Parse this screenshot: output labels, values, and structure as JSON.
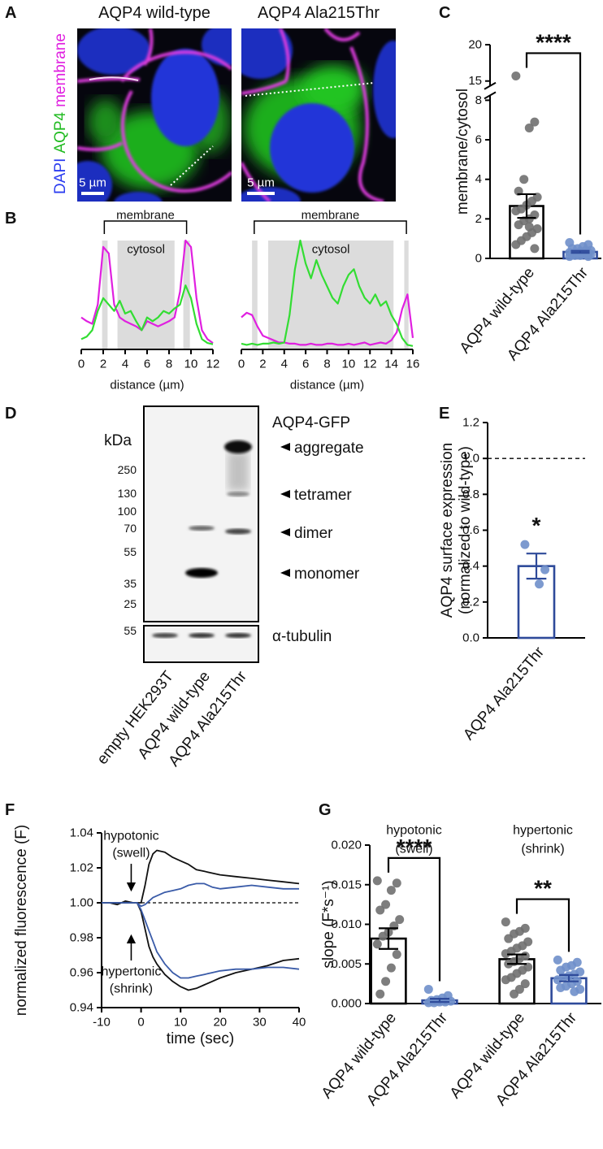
{
  "figure": {
    "panel_labels": [
      "A",
      "B",
      "C",
      "D",
      "E",
      "F",
      "G"
    ]
  },
  "microscopy": {
    "images": [
      {
        "title": "AQP4 wild-type",
        "scale_bar": "5 µm"
      },
      {
        "title": "AQP4 Ala215Thr",
        "scale_bar": "5 µm"
      }
    ],
    "channels": [
      {
        "name": "DAPI",
        "color": "#2b3cf0"
      },
      {
        "name": "AQP4",
        "color": "#22bb22"
      },
      {
        "name": "membrane",
        "color": "#e020e0"
      }
    ]
  },
  "western_blot": {
    "title": "AQP4-GFP",
    "unit": "kDa",
    "markers": [
      250,
      130,
      100,
      70,
      55,
      35,
      25
    ],
    "bands": [
      "aggregate",
      "tetramer",
      "dimer",
      "monomer"
    ],
    "loading_control": "α-tubulin",
    "loading_marker": 55,
    "lanes": [
      "empty HEK293T",
      "AQP4 wild-type",
      "AQP4 Ala215Thr"
    ]
  },
  "chart_data": [
    {
      "type": "line",
      "xlabel": "distance (µm)",
      "xlim": [
        0,
        12
      ],
      "xticks": [
        0,
        2,
        4,
        6,
        8,
        10,
        12
      ],
      "x": [
        0,
        0.5,
        1,
        1.5,
        2,
        2.5,
        3,
        3.5,
        4,
        4.5,
        5,
        5.5,
        6,
        6.5,
        7,
        7.5,
        8,
        8.5,
        9,
        9.5,
        10,
        10.5,
        11,
        11.5,
        12
      ],
      "series": [
        {
          "color": "#e020e0",
          "values": [
            25,
            22,
            20,
            35,
            80,
            75,
            35,
            25,
            22,
            20,
            18,
            15,
            22,
            20,
            18,
            20,
            22,
            25,
            45,
            85,
            80,
            40,
            15,
            8,
            5
          ]
        },
        {
          "color": "#33dd33",
          "values": [
            8,
            10,
            15,
            30,
            40,
            35,
            30,
            38,
            28,
            30,
            22,
            15,
            25,
            22,
            25,
            30,
            28,
            32,
            35,
            50,
            40,
            20,
            8,
            5,
            4
          ]
        }
      ],
      "shaded": [
        [
          1.9,
          2.4
        ],
        [
          3.3,
          8.5
        ],
        [
          9.3,
          9.9
        ]
      ],
      "brackets": [
        {
          "text": "membrane",
          "span": [
            2.1,
            9.6
          ]
        }
      ],
      "region_labels": [
        {
          "text": "cytosol",
          "span": [
            3.3,
            8.5
          ]
        }
      ]
    },
    {
      "type": "line",
      "xlabel": "distance (µm)",
      "xlim": [
        0,
        16
      ],
      "xticks": [
        0,
        2,
        4,
        6,
        8,
        10,
        12,
        14,
        16
      ],
      "x": [
        0,
        0.5,
        1,
        1.5,
        2,
        2.5,
        3,
        3.5,
        4,
        4.5,
        5,
        5.5,
        6,
        6.5,
        7,
        7.5,
        8,
        8.5,
        9,
        9.5,
        10,
        10.5,
        11,
        11.5,
        12,
        12.5,
        13,
        13.5,
        14,
        14.5,
        15,
        15.5,
        16
      ],
      "series": [
        {
          "color": "#e020e0",
          "values": [
            28,
            32,
            30,
            20,
            12,
            10,
            8,
            6,
            6,
            5,
            5,
            4,
            4,
            5,
            4,
            4,
            5,
            5,
            4,
            4,
            5,
            4,
            5,
            6,
            4,
            5,
            6,
            5,
            8,
            15,
            35,
            48,
            10
          ]
        },
        {
          "color": "#33dd33",
          "values": [
            5,
            4,
            5,
            4,
            5,
            5,
            6,
            5,
            6,
            30,
            70,
            95,
            75,
            62,
            78,
            65,
            55,
            45,
            40,
            55,
            65,
            70,
            55,
            45,
            40,
            48,
            38,
            42,
            30,
            22,
            10,
            4,
            3
          ]
        }
      ],
      "shaded": [
        [
          1,
          1.5
        ],
        [
          2.5,
          14.2
        ],
        [
          15.2,
          15.6
        ]
      ],
      "brackets": [
        {
          "text": "membrane",
          "span": [
            1.2,
            15.4
          ]
        }
      ],
      "region_labels": [
        {
          "text": "cytosol",
          "span": [
            2.5,
            14.2
          ]
        }
      ]
    },
    {
      "type": "bar",
      "ylabel": "membrane/cytosol",
      "categories": [
        "AQP4 wild-type",
        "AQP4 Ala215Thr"
      ],
      "values": [
        2.65,
        0.33
      ],
      "errors": [
        0.6,
        0.05
      ],
      "colors": [
        "#000000",
        "#2e4a9a"
      ],
      "point_colors": [
        "#707070",
        "#6f8fca"
      ],
      "points": [
        [
          15.7,
          6.9,
          6.6,
          4.0,
          3.4,
          3.1,
          2.9,
          2.7,
          2.5,
          2.4,
          2.2,
          2.0,
          1.9,
          1.7,
          1.5,
          1.3,
          1.1,
          0.9,
          0.7,
          0.5,
          1.6
        ],
        [
          0.8,
          0.7,
          0.6,
          0.5,
          0.5,
          0.4,
          0.4,
          0.35,
          0.3,
          0.3,
          0.3,
          0.25,
          0.25,
          0.2,
          0.2,
          0.2,
          0.15,
          0.15,
          0.1,
          0.1
        ]
      ],
      "ylim": [
        0,
        20
      ],
      "ybreak": [
        8,
        15
      ],
      "yticks": [
        0,
        2,
        4,
        6,
        8,
        15,
        20
      ],
      "significance": [
        {
          "label": "****",
          "between": [
            0,
            1
          ]
        }
      ]
    },
    {
      "type": "bar",
      "ylabel": [
        "AQP4 surface expression",
        "(normalized to wild-type)"
      ],
      "categories": [
        "AQP4 Ala215Thr"
      ],
      "values": [
        0.4
      ],
      "errors": [
        0.07
      ],
      "colors": [
        "#2e4a9a"
      ],
      "point_colors": [
        "#6f8fca"
      ],
      "points": [
        [
          0.52,
          0.38,
          0.3
        ]
      ],
      "ylim": [
        0,
        1.2
      ],
      "yticks": [
        {
          "value": 0,
          "label": "0.0"
        },
        0.2,
        0.4,
        0.6,
        0.8,
        {
          "value": 1,
          "label": "1.0"
        },
        1.2
      ],
      "reference_line": 1,
      "significance": [
        {
          "label": "*",
          "over": 0
        }
      ]
    },
    {
      "type": "line",
      "xlabel": "time (sec)",
      "ylabel": "normalized fluorescence (F)",
      "xlim": [
        -10,
        40
      ],
      "xticks": [
        -10,
        0,
        10,
        20,
        30,
        40
      ],
      "ylim": [
        0.94,
        1.04
      ],
      "yticks": [
        0.94,
        0.96,
        0.98,
        {
          "value": 1,
          "label": "1.00"
        },
        1.02,
        1.04
      ],
      "reference_line": 1,
      "x": [
        -10,
        -8,
        -6,
        -4,
        -2,
        -1,
        0,
        1,
        2,
        3,
        4,
        6,
        8,
        10,
        12,
        14,
        16,
        18,
        20,
        24,
        28,
        32,
        36,
        40
      ],
      "series": [
        {
          "color": "#111111",
          "values": [
            1.0,
            1.0,
            0.999,
            1.001,
            1.0,
            1.0,
            1.0,
            1.01,
            1.022,
            1.028,
            1.03,
            1.029,
            1.026,
            1.024,
            1.022,
            1.019,
            1.018,
            1.017,
            1.016,
            1.015,
            1.014,
            1.013,
            1.012,
            1.011
          ]
        },
        {
          "color": "#3a5ba8",
          "values": [
            1.0,
            1.0,
            1.0,
            1.0,
            1.0,
            1.0,
            0.998,
            0.999,
            1.001,
            1.003,
            1.004,
            1.006,
            1.007,
            1.008,
            1.01,
            1.011,
            1.011,
            1.009,
            1.008,
            1.009,
            1.01,
            1.009,
            1.008,
            1.008
          ]
        },
        {
          "color": "#111111",
          "values": [
            1.0,
            1.0,
            1.0,
            1.0,
            1.0,
            1.0,
            0.995,
            0.985,
            0.975,
            0.969,
            0.965,
            0.959,
            0.955,
            0.952,
            0.95,
            0.951,
            0.953,
            0.955,
            0.957,
            0.96,
            0.962,
            0.964,
            0.967,
            0.968
          ]
        },
        {
          "color": "#3a5ba8",
          "values": [
            1.0,
            1.0,
            1.0,
            1.0,
            1.0,
            1.0,
            0.996,
            0.99,
            0.984,
            0.978,
            0.972,
            0.965,
            0.96,
            0.957,
            0.957,
            0.958,
            0.959,
            0.96,
            0.961,
            0.962,
            0.962,
            0.963,
            0.963,
            0.962
          ]
        }
      ],
      "annotations": [
        {
          "text": "hypotonic",
          "subtext": "(swell)"
        },
        {
          "text": "hypertonic",
          "subtext": "(shrink)"
        }
      ]
    },
    {
      "type": "bar",
      "ylabel": "slope (F*s⁻¹)",
      "groups": [
        {
          "label": "hypotonic",
          "sublabel": "(swell)"
        },
        {
          "label": "hypertonic",
          "sublabel": "(shrink)"
        }
      ],
      "categories": [
        "AQP4 wild-type",
        "AQP4 Ala215Thr",
        "AQP4 wild-type",
        "AQP4 Ala215Thr"
      ],
      "values": [
        0.0082,
        0.0004,
        0.0056,
        0.0032
      ],
      "errors": [
        0.0013,
        0.0002,
        0.0006,
        0.0004
      ],
      "colors": [
        "#000000",
        "#2e4a9a",
        "#000000",
        "#2e4a9a"
      ],
      "point_colors": [
        "#707070",
        "#6f8fca",
        "#707070",
        "#6f8fca"
      ],
      "points": [
        [
          0.0155,
          0.0152,
          0.0143,
          0.0125,
          0.0118,
          0.0106,
          0.0098,
          0.009,
          0.0085,
          0.0075,
          0.0062,
          0.0045,
          0.0028,
          0.0012
        ],
        [
          0.0018,
          0.001,
          0.0007,
          0.0005,
          0.0004,
          0.0003,
          0.0002,
          0.0002,
          0.0001,
          0.0001
        ],
        [
          0.0103,
          0.0095,
          0.0091,
          0.0088,
          0.0082,
          0.0078,
          0.0073,
          0.007,
          0.0066,
          0.0063,
          0.006,
          0.0057,
          0.0053,
          0.005,
          0.0046,
          0.0042,
          0.0038,
          0.0033,
          0.003,
          0.0025,
          0.0018,
          0.0012
        ],
        [
          0.0055,
          0.0052,
          0.0048,
          0.0046,
          0.0042,
          0.004,
          0.0037,
          0.0035,
          0.0033,
          0.003,
          0.0028,
          0.0025,
          0.0022,
          0.002,
          0.0018,
          0.0015
        ]
      ],
      "ylim": [
        0,
        0.02
      ],
      "yticks": [
        {
          "value": 0,
          "label": "0.000"
        },
        0.005,
        {
          "value": 0.01,
          "label": "0.010"
        },
        0.015,
        {
          "value": 0.02,
          "label": "0.020"
        }
      ],
      "significance": [
        {
          "label": "****",
          "between": [
            0,
            1
          ]
        },
        {
          "label": "**",
          "between": [
            2,
            3
          ]
        }
      ]
    }
  ]
}
